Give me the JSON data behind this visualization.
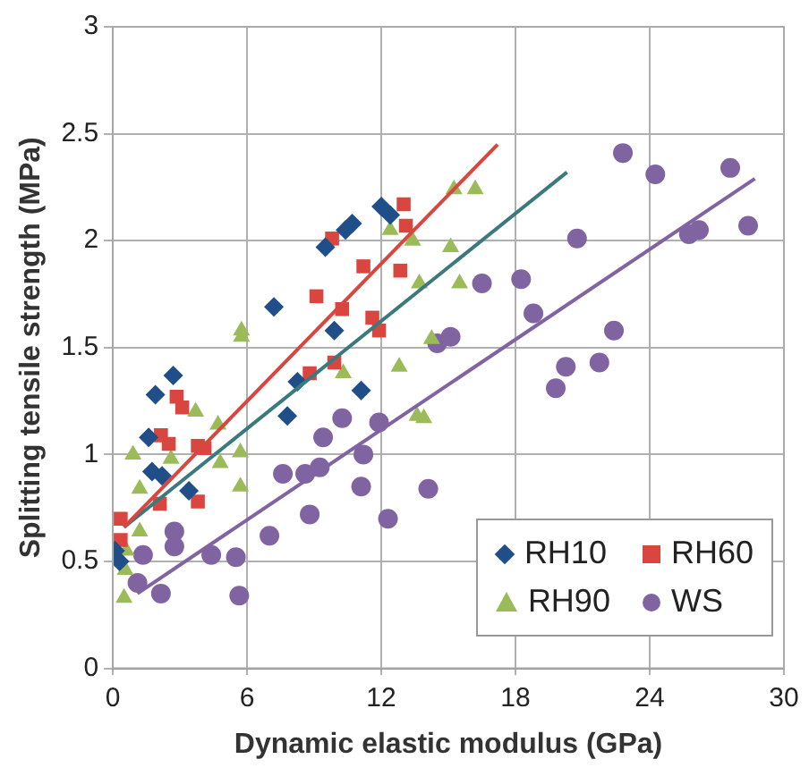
{
  "chart_data": {
    "type": "scatter",
    "xlabel": "Dynamic elastic modulus (GPa)",
    "ylabel": "Splitting tensile strength (MPa)",
    "xlim": [
      0,
      30
    ],
    "xticks": [
      0,
      6,
      12,
      18,
      24,
      30
    ],
    "ylim": [
      0,
      3
    ],
    "yticks": [
      0,
      0.5,
      1,
      1.5,
      2,
      2.5,
      3
    ],
    "grid": true,
    "legend": "bottom right",
    "series": [
      {
        "name": "RH10",
        "color": "#1f4e89",
        "marker": "diamond",
        "x": [
          0.1,
          0.3,
          1.6,
          1.75,
          1.9,
          2.2,
          2.7,
          3.4,
          7.2,
          7.8,
          8.25,
          9.5,
          9.9,
          10.7,
          10.4,
          11.1,
          12,
          12.4
        ],
        "values": [
          0.55,
          0.5,
          1.08,
          0.92,
          1.28,
          0.9,
          1.37,
          0.83,
          1.69,
          1.18,
          1.34,
          1.97,
          1.58,
          2.08,
          2.05,
          1.3,
          2.16,
          2.12
        ]
      },
      {
        "name": "RH60",
        "color": "#d9463f",
        "marker": "square",
        "x": [
          0.35,
          0.35,
          2.15,
          2.5,
          2.85,
          3.1,
          3.8,
          4.1,
          3.8,
          2.1,
          9.1,
          9.8,
          11.2,
          10.25,
          11.6,
          11.9,
          9.9,
          8.8,
          13,
          13.1,
          12.85
        ],
        "values": [
          0.7,
          0.6,
          1.09,
          1.05,
          1.27,
          1.22,
          1.04,
          1.03,
          0.78,
          0.77,
          1.74,
          2.01,
          1.88,
          1.68,
          1.64,
          1.58,
          1.43,
          1.38,
          2.17,
          2.07,
          1.86
        ]
      },
      {
        "name": "RH90",
        "color": "#9bbb59",
        "marker": "triangle",
        "x": [
          0.5,
          0.55,
          0.6,
          1.2,
          0.9,
          1.2,
          2.6,
          3.7,
          4.7,
          4.8,
          5.7,
          5.7,
          5.75,
          5.75,
          10.3,
          12.8,
          13.6,
          13.9,
          12.4,
          13.4,
          15.25,
          16.2,
          15.1,
          13.7,
          15.5,
          14.25
        ],
        "values": [
          0.33,
          0.46,
          0.55,
          0.64,
          1.0,
          0.84,
          0.98,
          1.2,
          1.14,
          0.96,
          1.01,
          0.85,
          1.58,
          1.55,
          1.38,
          1.41,
          1.18,
          1.17,
          2.05,
          2.0,
          2.24,
          2.24,
          1.97,
          1.8,
          1.8,
          1.54
        ]
      },
      {
        "name": "WS",
        "color": "#8064a2",
        "marker": "circle",
        "x": [
          1.1,
          1.35,
          2.15,
          2.75,
          2.75,
          4.4,
          5.5,
          5.65,
          7,
          7.6,
          8.6,
          9.25,
          8.8,
          9.4,
          10.25,
          11.2,
          11.1,
          11.9,
          12.3,
          14.1,
          14.5,
          15.1,
          16.5,
          18.25,
          18.8,
          20.75,
          22.8,
          24.25,
          27.6,
          25.75,
          26.2,
          28.4,
          22.4,
          20.25,
          19.8,
          21.75
        ],
        "values": [
          0.4,
          0.53,
          0.35,
          0.64,
          0.57,
          0.53,
          0.52,
          0.34,
          0.62,
          0.91,
          0.91,
          0.94,
          0.72,
          1.08,
          1.17,
          1.0,
          0.85,
          1.15,
          0.7,
          0.84,
          1.52,
          1.55,
          1.8,
          1.82,
          1.66,
          2.01,
          2.41,
          2.31,
          2.34,
          2.03,
          2.05,
          2.07,
          1.58,
          1.41,
          1.31,
          1.43
        ]
      },
      {
        "type": "line",
        "color": "#d9463f",
        "marker": "none",
        "x": [
          0.5,
          17.2
        ],
        "values": [
          0.66,
          2.45
        ]
      },
      {
        "type": "line",
        "color": "#3a7a7e",
        "marker": "none",
        "x": [
          0.5,
          20.3
        ],
        "values": [
          0.66,
          2.32
        ]
      },
      {
        "type": "line",
        "color": "#8064a2",
        "marker": "none",
        "x": [
          1.1,
          28.7
        ],
        "values": [
          0.35,
          2.29
        ]
      }
    ]
  }
}
